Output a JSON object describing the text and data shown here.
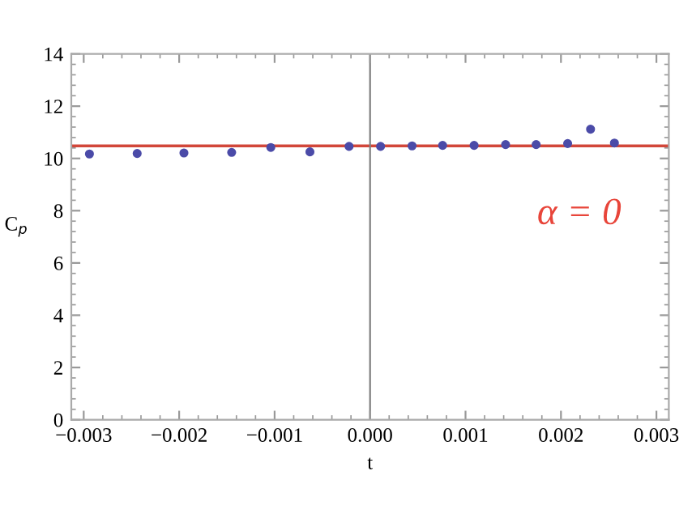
{
  "chart_data": {
    "type": "scatter",
    "xlabel": "t",
    "ylabel": "C$_{p}$",
    "x": [
      -0.00294,
      -0.00244,
      -0.00195,
      -0.00145,
      -0.00104,
      -0.00063,
      -0.00022,
      0.00011,
      0.00044,
      0.00076,
      0.00109,
      0.00142,
      0.00174,
      0.00207,
      0.00231,
      0.00256
    ],
    "series": [
      {
        "color": "#4b4ba8",
        "values": [
          10.17,
          10.19,
          10.21,
          10.23,
          10.42,
          10.25,
          10.46,
          10.46,
          10.48,
          10.5,
          10.5,
          10.53,
          10.53,
          10.57,
          11.12,
          10.59
        ]
      }
    ],
    "marker": "circle",
    "ref_lines": [
      {
        "axis": "y",
        "value": 10.48,
        "color": "#d2473a"
      },
      {
        "axis": "x",
        "value": 0,
        "color": "#808080"
      }
    ],
    "annotations": [
      "α = 0"
    ],
    "xlim": [
      -0.00313,
      0.00313
    ],
    "ylim": [
      0,
      14
    ],
    "xticks": [
      {
        "value": -0.003,
        "label": "−0.003"
      },
      {
        "value": -0.002,
        "label": "−0.002"
      },
      {
        "value": -0.001,
        "label": "−0.001"
      },
      {
        "value": 0,
        "label": "0.000"
      },
      {
        "value": 0.001,
        "label": "0.001"
      },
      {
        "value": 0.002,
        "label": "0.002"
      },
      {
        "value": 0.003,
        "label": "0.003"
      }
    ],
    "yticks": [
      0,
      2,
      4,
      6,
      8,
      10,
      12,
      14
    ],
    "grid": false
  }
}
